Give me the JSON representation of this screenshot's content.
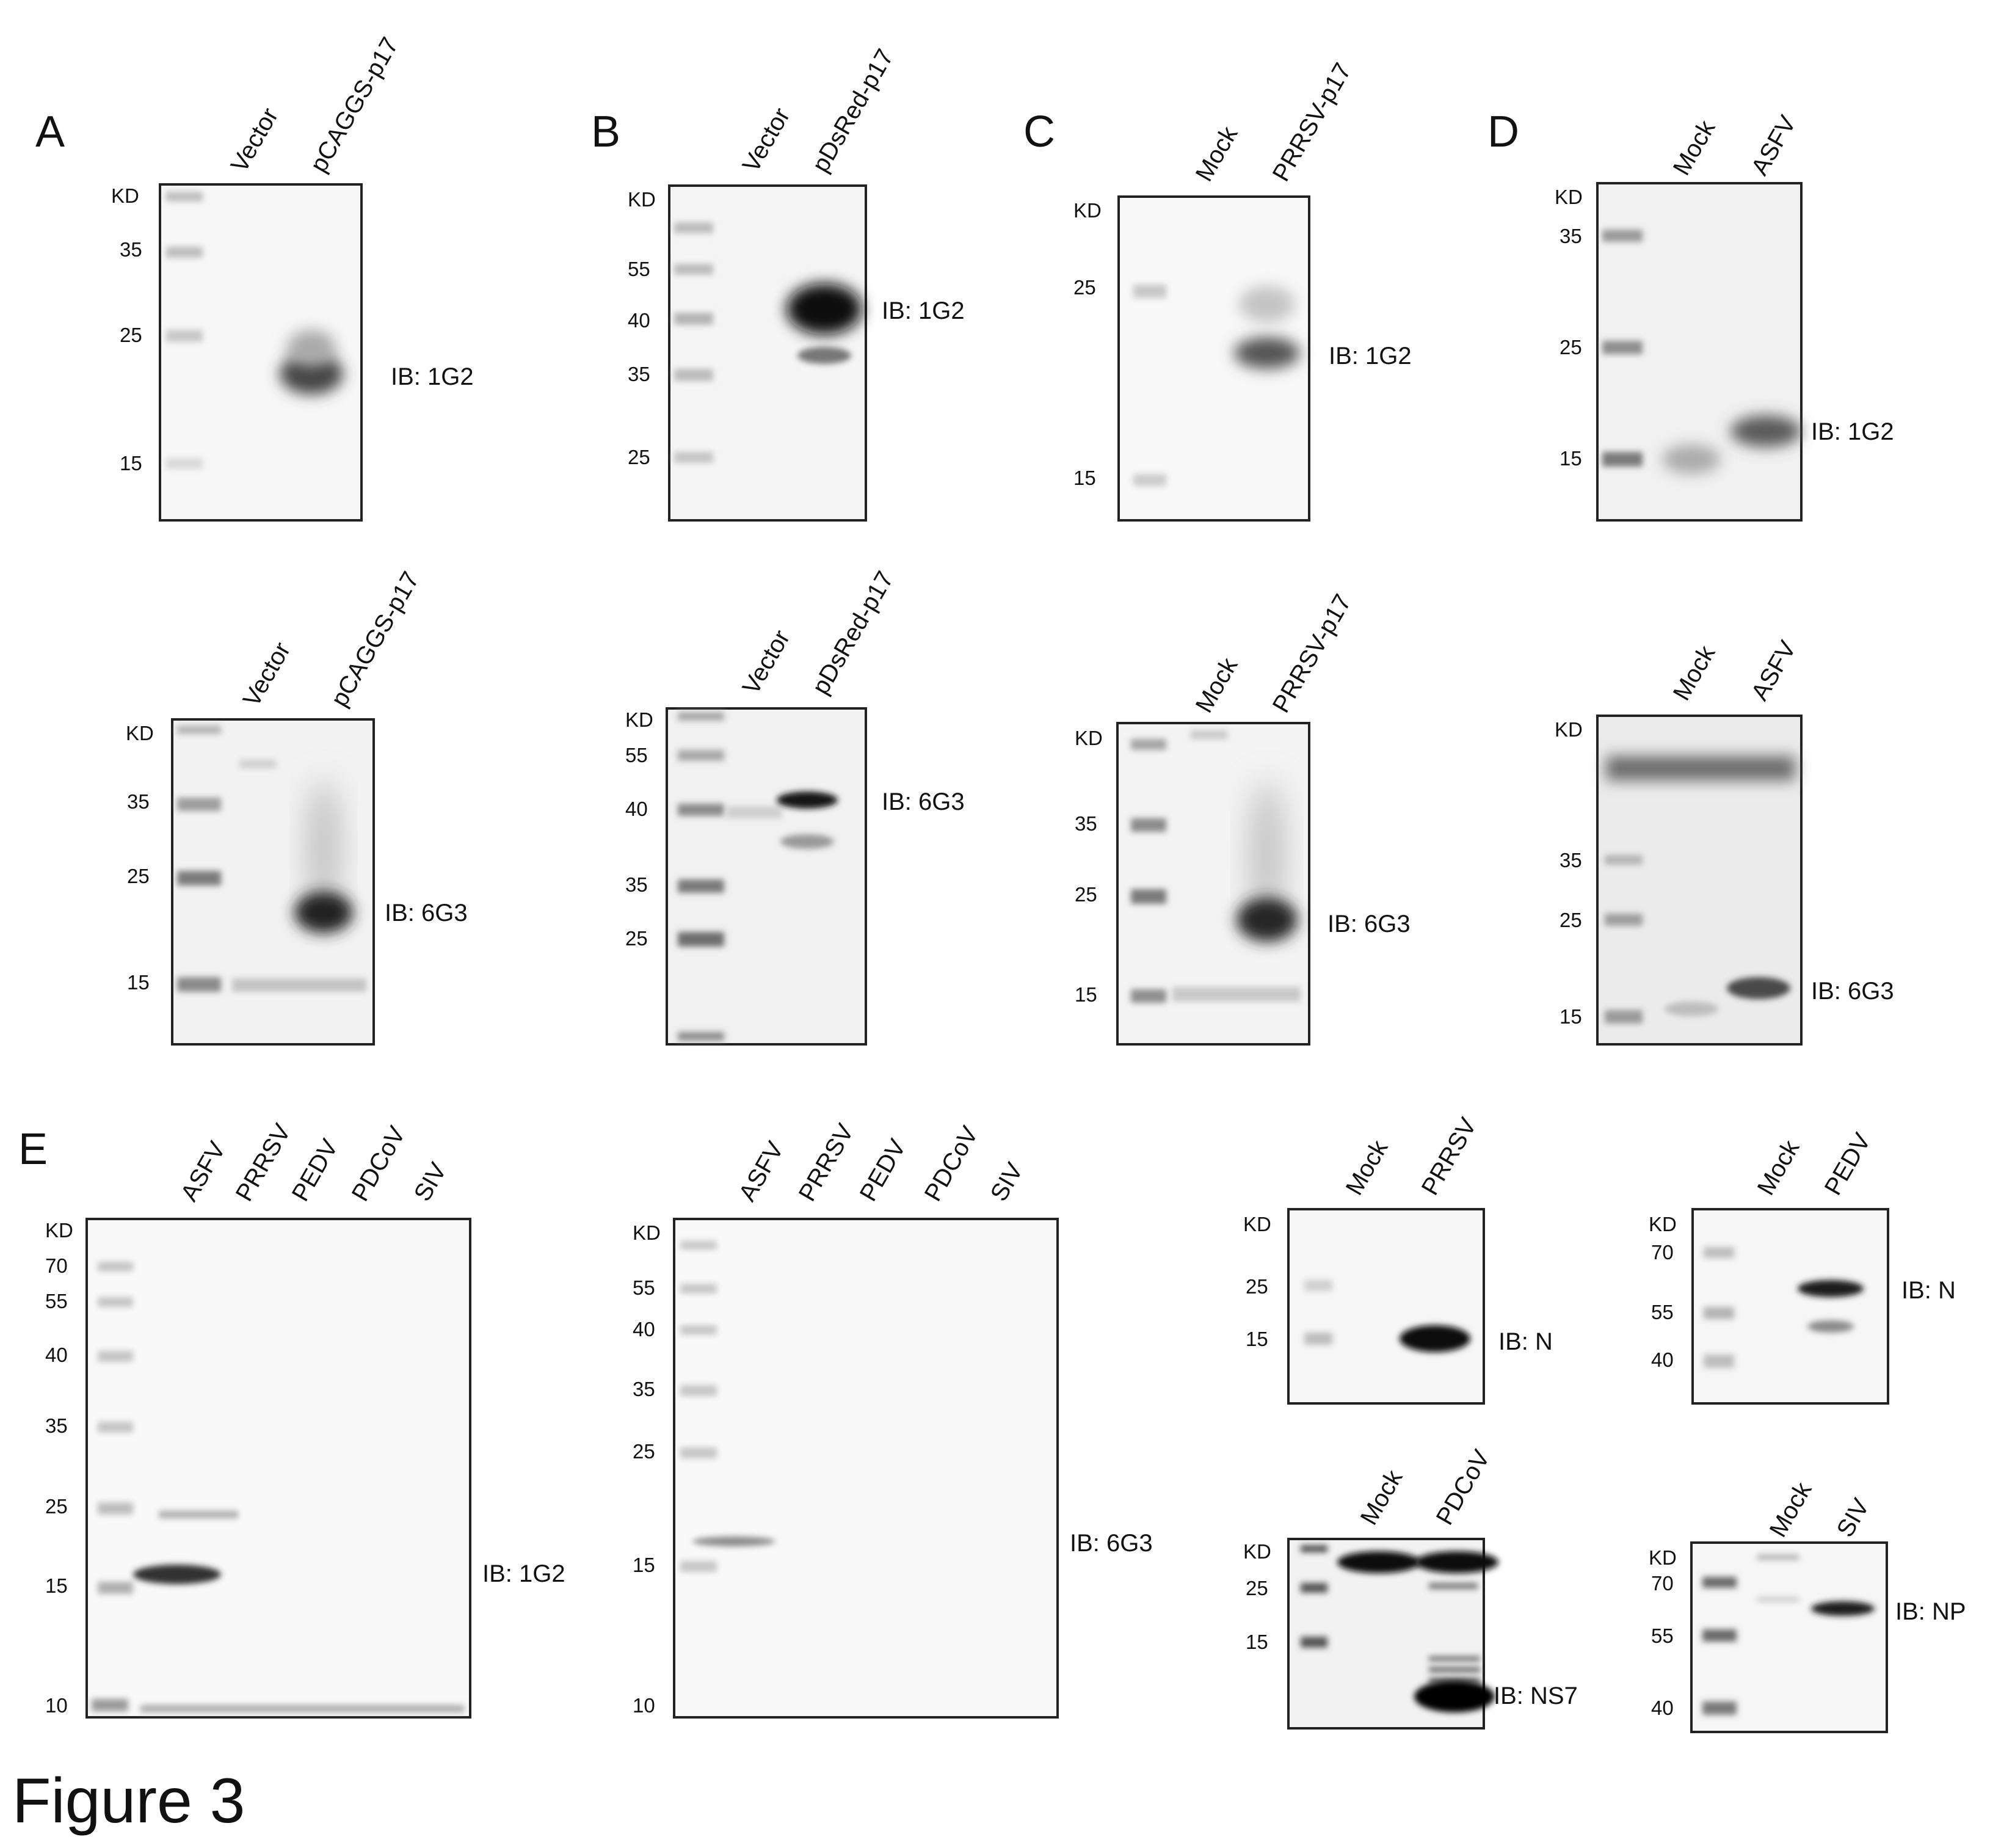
{
  "figure_title": "Figure 3",
  "panels": [
    {
      "id": "A1",
      "letter": "A",
      "lanes": [
        "Vector",
        "pCAGGS-p17"
      ],
      "kd_header": "KD",
      "markers": [
        "35",
        "25",
        "15"
      ],
      "ib": "IB: 1G2"
    },
    {
      "id": "B1",
      "letter": "B",
      "lanes": [
        "Vector",
        "pDsRed-p17"
      ],
      "kd_header": "KD",
      "markers": [
        "55",
        "40",
        "35",
        "25"
      ],
      "ib": "IB: 1G2"
    },
    {
      "id": "C1",
      "letter": "C",
      "lanes": [
        "Mock",
        "PRRSV-p17"
      ],
      "kd_header": "KD",
      "markers": [
        "25",
        "15"
      ],
      "ib": "IB: 1G2"
    },
    {
      "id": "D1",
      "letter": "D",
      "lanes": [
        "Mock",
        "ASFV"
      ],
      "kd_header": "KD",
      "markers": [
        "35",
        "25",
        "15"
      ],
      "ib": "IB: 1G2"
    },
    {
      "id": "A2",
      "letter": "",
      "lanes": [
        "Vector",
        "pCAGGS-p17"
      ],
      "kd_header": "KD",
      "markers": [
        "35",
        "25",
        "15"
      ],
      "ib": "IB: 6G3"
    },
    {
      "id": "B2",
      "letter": "",
      "lanes": [
        "Vector",
        "pDsRed-p17"
      ],
      "kd_header": "KD",
      "markers": [
        "55",
        "40",
        "35",
        "25"
      ],
      "ib": "IB: 6G3"
    },
    {
      "id": "C2",
      "letter": "",
      "lanes": [
        "Mock",
        "PRRSV-p17"
      ],
      "kd_header": "KD",
      "markers": [
        "35",
        "25",
        "15"
      ],
      "ib": "IB: 6G3"
    },
    {
      "id": "D2",
      "letter": "",
      "lanes": [
        "Mock",
        "ASFV"
      ],
      "kd_header": "KD",
      "markers": [
        "35",
        "25",
        "15"
      ],
      "ib": "IB: 6G3"
    },
    {
      "id": "E1",
      "letter": "E",
      "lanes": [
        "ASFV",
        "PRRSV",
        "PEDV",
        "PDCoV",
        "SIV"
      ],
      "kd_header": "KD",
      "markers": [
        "70",
        "55",
        "40",
        "35",
        "25",
        "15",
        "10"
      ],
      "ib": "IB: 1G2"
    },
    {
      "id": "E2",
      "letter": "",
      "lanes": [
        "ASFV",
        "PRRSV",
        "PEDV",
        "PDCoV",
        "SIV"
      ],
      "kd_header": "KD",
      "markers": [
        "55",
        "40",
        "35",
        "25",
        "15",
        "10"
      ],
      "ib": "IB: 6G3"
    },
    {
      "id": "E3",
      "letter": "",
      "lanes": [
        "Mock",
        "PRRSV"
      ],
      "kd_header": "KD",
      "markers": [
        "25",
        "15"
      ],
      "ib": "IB: N"
    },
    {
      "id": "E4",
      "letter": "",
      "lanes": [
        "Mock",
        "PEDV"
      ],
      "kd_header": "KD",
      "markers": [
        "70",
        "55",
        "40"
      ],
      "ib": "IB: N"
    },
    {
      "id": "E5",
      "letter": "",
      "lanes": [
        "Mock",
        "PDCoV"
      ],
      "kd_header": "KD",
      "markers": [
        "25",
        "15"
      ],
      "ib": "IB: NS7"
    },
    {
      "id": "E6",
      "letter": "",
      "lanes": [
        "Mock",
        "SIV"
      ],
      "kd_header": "KD",
      "markers": [
        "70",
        "55",
        "40"
      ],
      "ib": "IB: NP"
    }
  ]
}
